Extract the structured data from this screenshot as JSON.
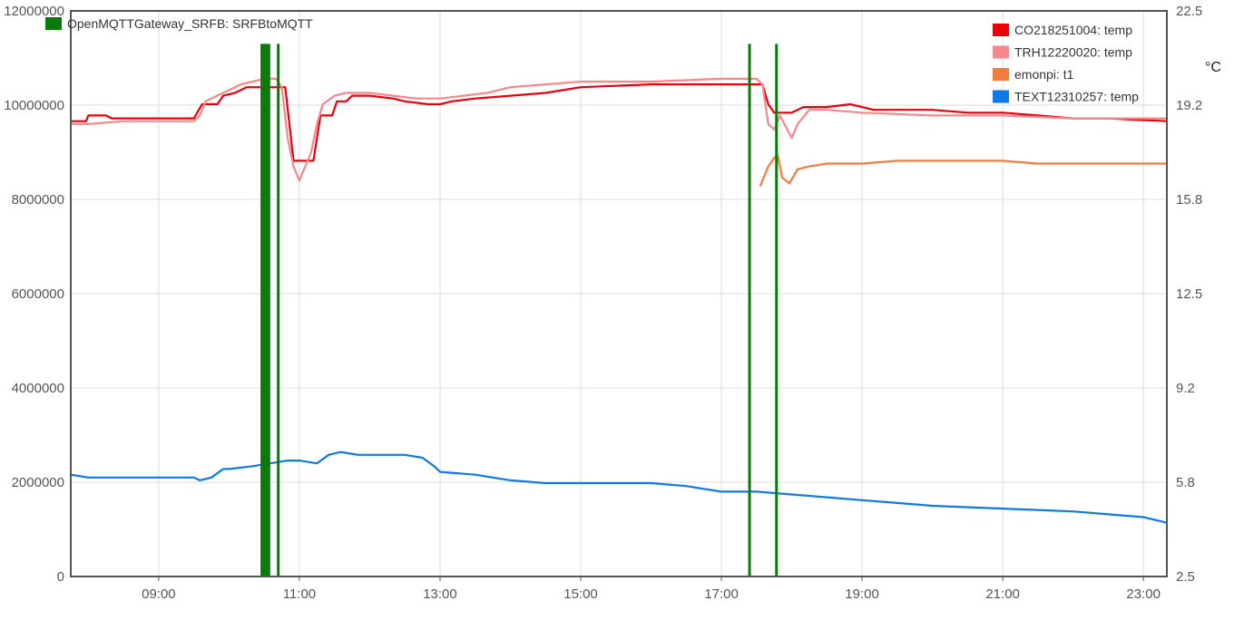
{
  "chart_data": {
    "type": "line",
    "title": "",
    "xlabel": "",
    "ylabel_left": "",
    "ylabel_right": "°C",
    "x_range": [
      "07:45",
      "23:20"
    ],
    "x_ticks": [
      "09:00",
      "11:00",
      "13:00",
      "15:00",
      "17:00",
      "19:00",
      "21:00",
      "23:00"
    ],
    "y_left_ticks": [
      "0",
      "2000000",
      "4000000",
      "6000000",
      "8000000",
      "10000000",
      "12000000"
    ],
    "y_left_range": [
      0,
      12000000
    ],
    "y_right_ticks": [
      "2.5",
      "5.8",
      "9.2",
      "12.5",
      "15.8",
      "19.2",
      "22.5"
    ],
    "y_right_range": [
      2.5,
      22.5
    ],
    "grid": true,
    "legends": {
      "top-left": [
        "OpenMQTTGateway_SRFB: SRFBtoMQTT"
      ],
      "top-right": [
        "CO218251004: temp",
        "TRH12220020: temp",
        "emonpi: t1",
        "TEXT12310257: temp"
      ]
    },
    "series": [
      {
        "name": "OpenMQTTGateway_SRFB: SRFBtoMQTT",
        "axis": "left",
        "style": "event-bars",
        "color": "#0a7a0a",
        "points": [
          [
            "10:28",
            11300000
          ],
          [
            "10:30",
            11300000
          ],
          [
            "10:32",
            11300000
          ],
          [
            "10:34",
            11300000
          ],
          [
            "10:42",
            11300000
          ],
          [
            "17:24",
            11300000
          ],
          [
            "17:47",
            11300000
          ],
          [
            "18:03",
            20000
          ]
        ]
      },
      {
        "name": "CO218251004: temp",
        "axis": "right",
        "color": "#e8000b",
        "points": [
          [
            "07:45",
            18.6
          ],
          [
            "07:58",
            18.6
          ],
          [
            "08:00",
            18.8
          ],
          [
            "08:15",
            18.8
          ],
          [
            "08:20",
            18.7
          ],
          [
            "09:00",
            18.7
          ],
          [
            "09:30",
            18.7
          ],
          [
            "09:37",
            19.2
          ],
          [
            "09:50",
            19.2
          ],
          [
            "09:55",
            19.5
          ],
          [
            "10:05",
            19.6
          ],
          [
            "10:15",
            19.8
          ],
          [
            "10:25",
            19.8
          ],
          [
            "10:30",
            19.8
          ],
          [
            "10:45",
            19.8
          ],
          [
            "10:48",
            19.8
          ],
          [
            "10:55",
            17.2
          ],
          [
            "11:00",
            17.2
          ],
          [
            "11:12",
            17.2
          ],
          [
            "11:18",
            18.8
          ],
          [
            "11:28",
            18.8
          ],
          [
            "11:32",
            19.3
          ],
          [
            "11:40",
            19.3
          ],
          [
            "11:45",
            19.5
          ],
          [
            "12:00",
            19.5
          ],
          [
            "12:20",
            19.4
          ],
          [
            "12:30",
            19.3
          ],
          [
            "12:50",
            19.2
          ],
          [
            "13:00",
            19.2
          ],
          [
            "13:10",
            19.3
          ],
          [
            "13:30",
            19.4
          ],
          [
            "14:00",
            19.5
          ],
          [
            "14:30",
            19.6
          ],
          [
            "15:00",
            19.8
          ],
          [
            "16:00",
            19.9
          ],
          [
            "17:00",
            19.9
          ],
          [
            "17:30",
            19.9
          ],
          [
            "17:35",
            19.9
          ],
          [
            "17:40",
            19.2
          ],
          [
            "17:45",
            18.9
          ],
          [
            "18:00",
            18.9
          ],
          [
            "18:10",
            19.1
          ],
          [
            "18:30",
            19.1
          ],
          [
            "18:50",
            19.2
          ],
          [
            "19:10",
            19.0
          ],
          [
            "19:30",
            19.0
          ],
          [
            "20:00",
            19.0
          ],
          [
            "20:30",
            18.9
          ],
          [
            "21:00",
            18.9
          ],
          [
            "21:30",
            18.8
          ],
          [
            "22:00",
            18.7
          ],
          [
            "22:30",
            18.7
          ],
          [
            "23:20",
            18.6
          ]
        ]
      },
      {
        "name": "TRH12220020: temp",
        "axis": "right",
        "color": "#f4888a",
        "points": [
          [
            "07:45",
            18.5
          ],
          [
            "08:00",
            18.5
          ],
          [
            "08:30",
            18.6
          ],
          [
            "09:00",
            18.6
          ],
          [
            "09:30",
            18.6
          ],
          [
            "09:35",
            18.8
          ],
          [
            "09:40",
            19.3
          ],
          [
            "09:50",
            19.5
          ],
          [
            "10:00",
            19.7
          ],
          [
            "10:10",
            19.9
          ],
          [
            "10:20",
            20.0
          ],
          [
            "10:30",
            20.1
          ],
          [
            "10:40",
            20.1
          ],
          [
            "10:45",
            19.8
          ],
          [
            "10:50",
            18.0
          ],
          [
            "10:55",
            17.0
          ],
          [
            "11:00",
            16.5
          ],
          [
            "11:10",
            17.5
          ],
          [
            "11:15",
            18.5
          ],
          [
            "11:20",
            19.2
          ],
          [
            "11:30",
            19.5
          ],
          [
            "11:40",
            19.6
          ],
          [
            "12:00",
            19.6
          ],
          [
            "12:20",
            19.5
          ],
          [
            "12:40",
            19.4
          ],
          [
            "13:00",
            19.4
          ],
          [
            "13:20",
            19.5
          ],
          [
            "13:40",
            19.6
          ],
          [
            "14:00",
            19.8
          ],
          [
            "14:30",
            19.9
          ],
          [
            "15:00",
            20.0
          ],
          [
            "16:00",
            20.0
          ],
          [
            "17:00",
            20.1
          ],
          [
            "17:30",
            20.1
          ],
          [
            "17:35",
            19.9
          ],
          [
            "17:40",
            18.5
          ],
          [
            "17:45",
            18.3
          ],
          [
            "17:50",
            18.8
          ],
          [
            "18:00",
            18.0
          ],
          [
            "18:05",
            18.5
          ],
          [
            "18:15",
            19.0
          ],
          [
            "18:30",
            19.0
          ],
          [
            "19:00",
            18.9
          ],
          [
            "20:00",
            18.8
          ],
          [
            "21:00",
            18.8
          ],
          [
            "22:00",
            18.7
          ],
          [
            "23:20",
            18.7
          ]
        ]
      },
      {
        "name": "emonpi: t1",
        "axis": "right",
        "color": "#f37b3e",
        "points": [
          [
            "17:33",
            16.3
          ],
          [
            "17:40",
            17.0
          ],
          [
            "17:45",
            17.3
          ],
          [
            "17:48",
            17.4
          ],
          [
            "17:52",
            16.6
          ],
          [
            "17:58",
            16.4
          ],
          [
            "18:05",
            16.9
          ],
          [
            "18:15",
            17.0
          ],
          [
            "18:30",
            17.1
          ],
          [
            "19:00",
            17.1
          ],
          [
            "19:30",
            17.2
          ],
          [
            "20:00",
            17.2
          ],
          [
            "21:00",
            17.2
          ],
          [
            "21:30",
            17.1
          ],
          [
            "22:00",
            17.1
          ],
          [
            "23:00",
            17.1
          ],
          [
            "23:20",
            17.1
          ]
        ]
      },
      {
        "name": "TEXT12310257: temp",
        "axis": "right",
        "color": "#0e7ae6",
        "points": [
          [
            "07:45",
            6.1
          ],
          [
            "08:00",
            6.0
          ],
          [
            "09:00",
            6.0
          ],
          [
            "09:30",
            6.0
          ],
          [
            "09:35",
            5.9
          ],
          [
            "09:45",
            6.0
          ],
          [
            "09:55",
            6.3
          ],
          [
            "10:00",
            6.3
          ],
          [
            "10:20",
            6.4
          ],
          [
            "10:35",
            6.5
          ],
          [
            "10:50",
            6.6
          ],
          [
            "11:00",
            6.6
          ],
          [
            "11:15",
            6.5
          ],
          [
            "11:25",
            6.8
          ],
          [
            "11:35",
            6.9
          ],
          [
            "11:50",
            6.8
          ],
          [
            "12:30",
            6.8
          ],
          [
            "12:45",
            6.7
          ],
          [
            "12:55",
            6.4
          ],
          [
            "13:00",
            6.2
          ],
          [
            "13:30",
            6.1
          ],
          [
            "14:00",
            5.9
          ],
          [
            "14:30",
            5.8
          ],
          [
            "15:00",
            5.8
          ],
          [
            "16:00",
            5.8
          ],
          [
            "16:30",
            5.7
          ],
          [
            "17:00",
            5.5
          ],
          [
            "17:30",
            5.5
          ],
          [
            "18:00",
            5.4
          ],
          [
            "18:30",
            5.3
          ],
          [
            "19:00",
            5.2
          ],
          [
            "19:30",
            5.1
          ],
          [
            "20:00",
            5.0
          ],
          [
            "21:00",
            4.9
          ],
          [
            "22:00",
            4.8
          ],
          [
            "22:30",
            4.7
          ],
          [
            "23:00",
            4.6
          ],
          [
            "23:10",
            4.5
          ],
          [
            "23:20",
            4.4
          ]
        ]
      }
    ]
  }
}
